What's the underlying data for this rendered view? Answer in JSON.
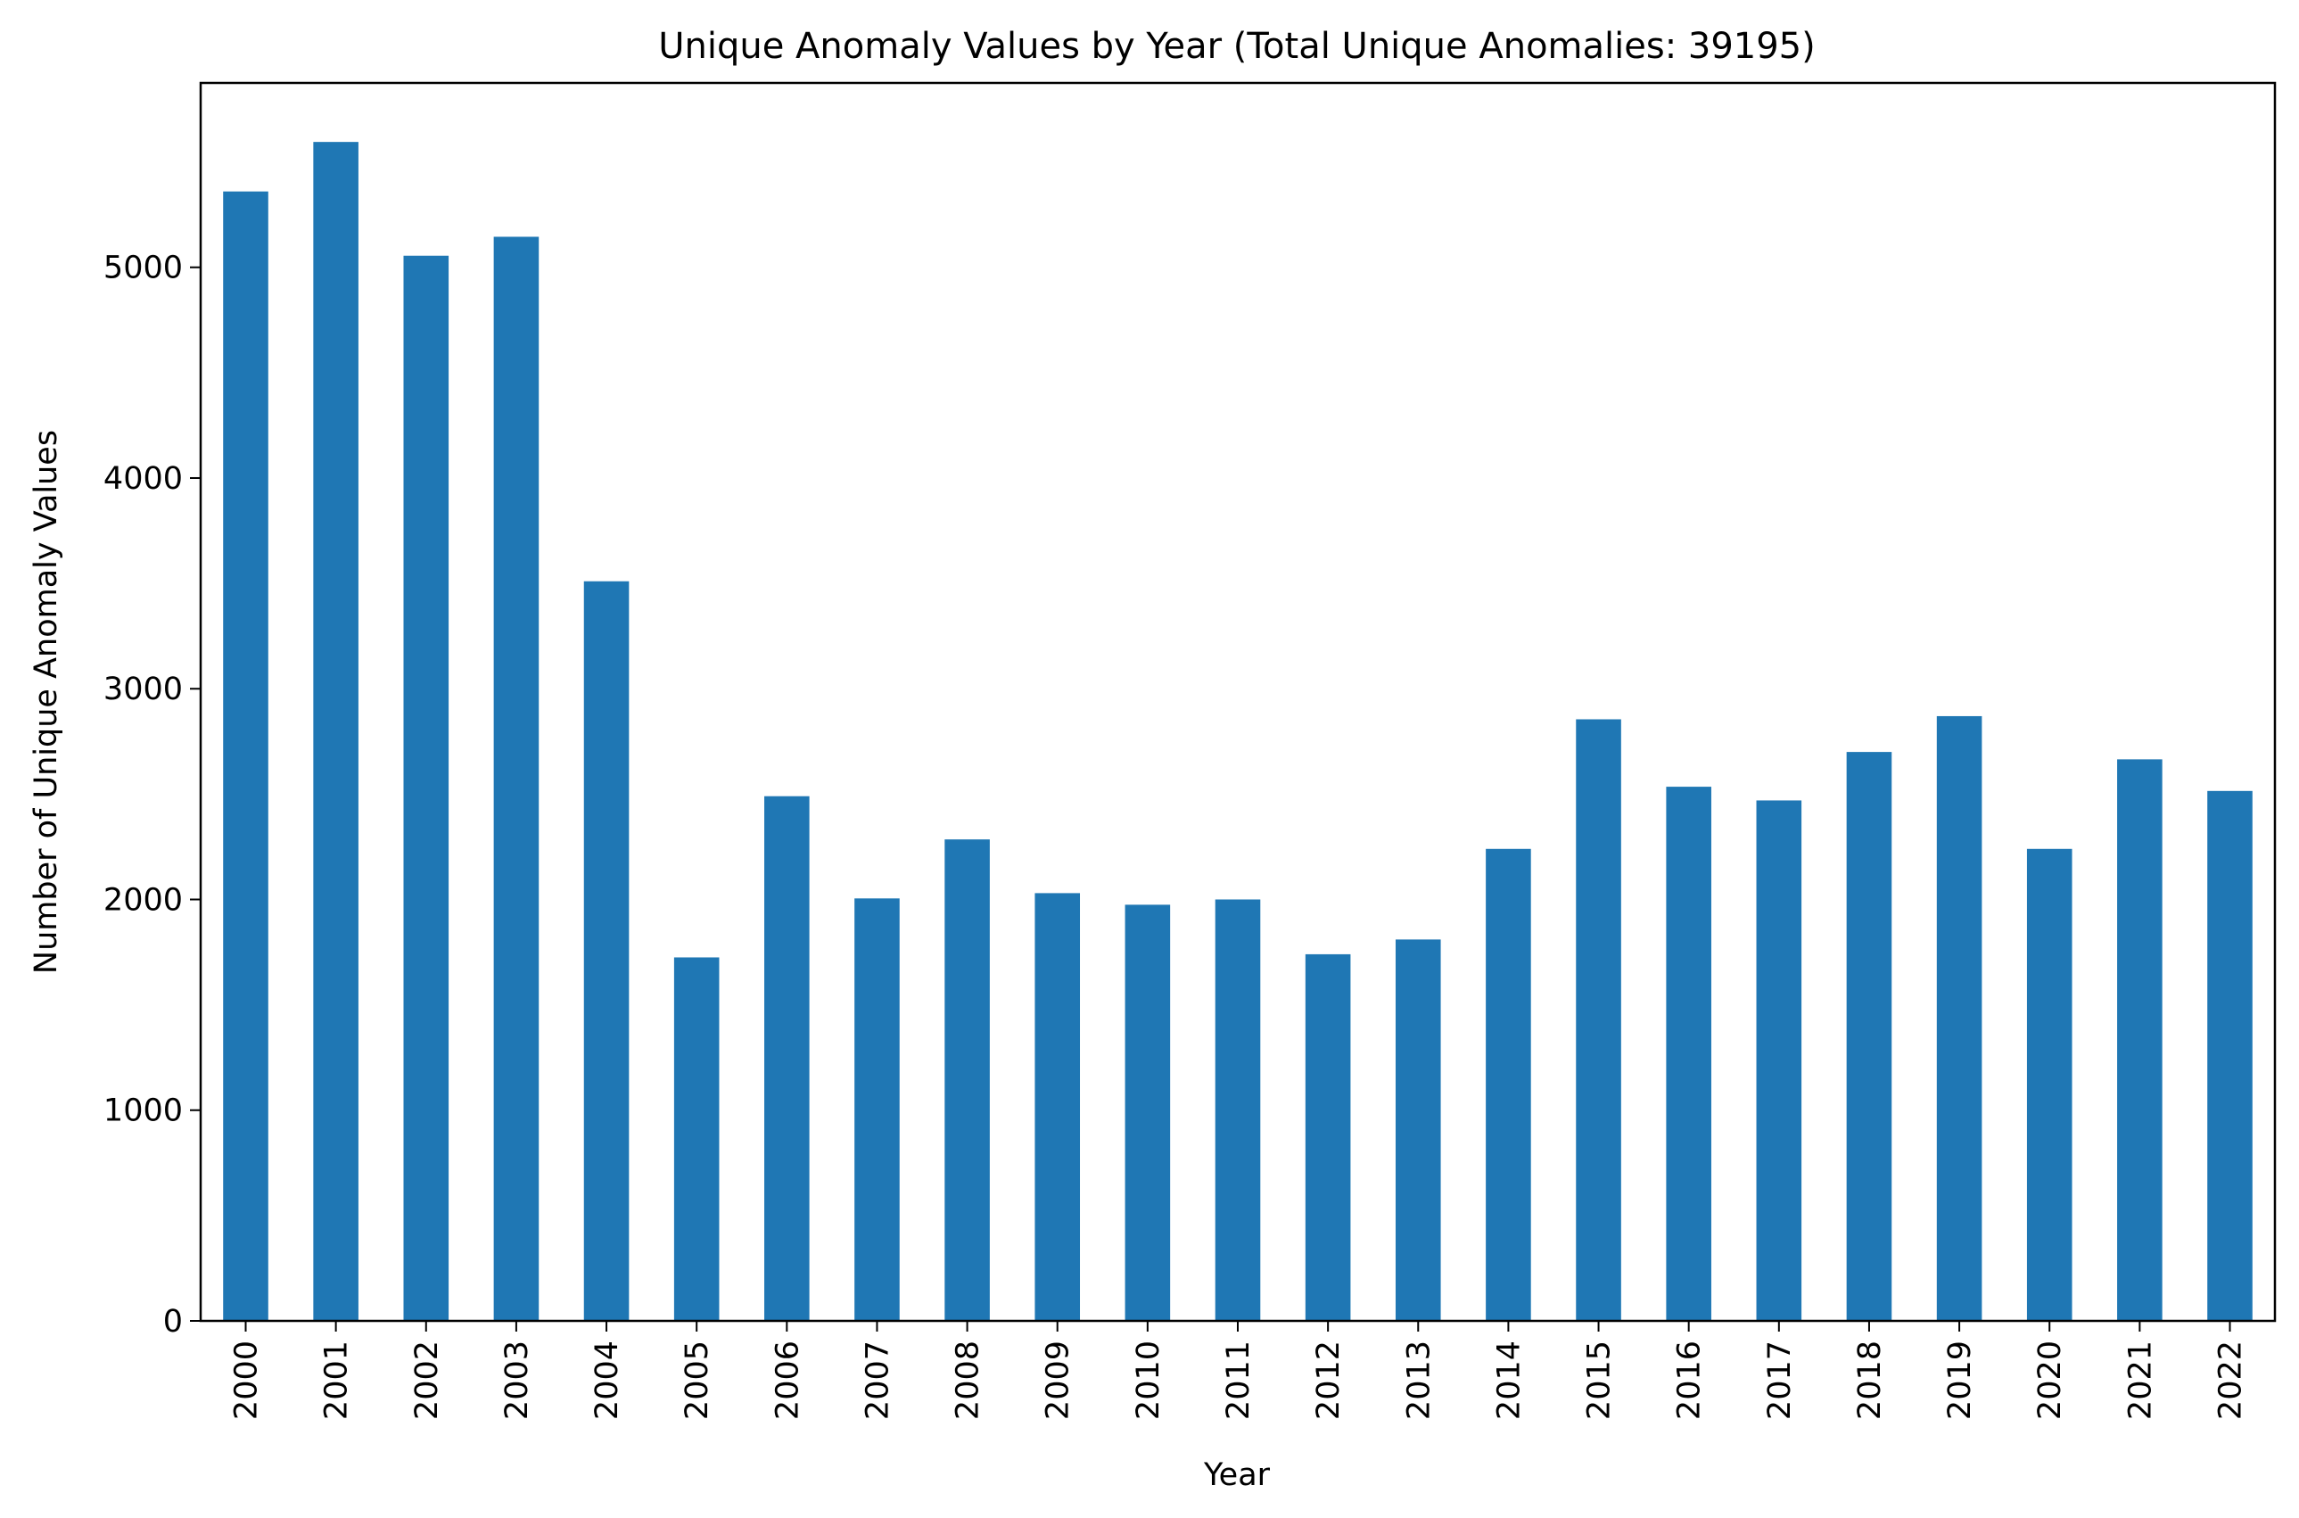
{
  "chart_data": {
    "type": "bar",
    "title": "Unique Anomaly Values by Year (Total Unique Anomalies: 39195)",
    "xlabel": "Year",
    "ylabel": "Number of Unique Anomaly Values",
    "categories": [
      "2000",
      "2001",
      "2002",
      "2003",
      "2004",
      "2005",
      "2006",
      "2007",
      "2008",
      "2009",
      "2010",
      "2011",
      "2012",
      "2013",
      "2014",
      "2015",
      "2016",
      "2017",
      "2018",
      "2019",
      "2020",
      "2021",
      "2022"
    ],
    "values": [
      5360,
      5595,
      5055,
      5145,
      3510,
      1725,
      2490,
      2005,
      2285,
      2030,
      1975,
      2000,
      1740,
      1810,
      2240,
      2855,
      2535,
      2470,
      2700,
      2870,
      2240,
      2665,
      2515
    ],
    "ylim": [
      0,
      5875
    ],
    "yticks": [
      0,
      1000,
      2000,
      3000,
      4000,
      5000
    ],
    "bar_color": "#1f77b4",
    "grid": false,
    "legend": "none"
  }
}
